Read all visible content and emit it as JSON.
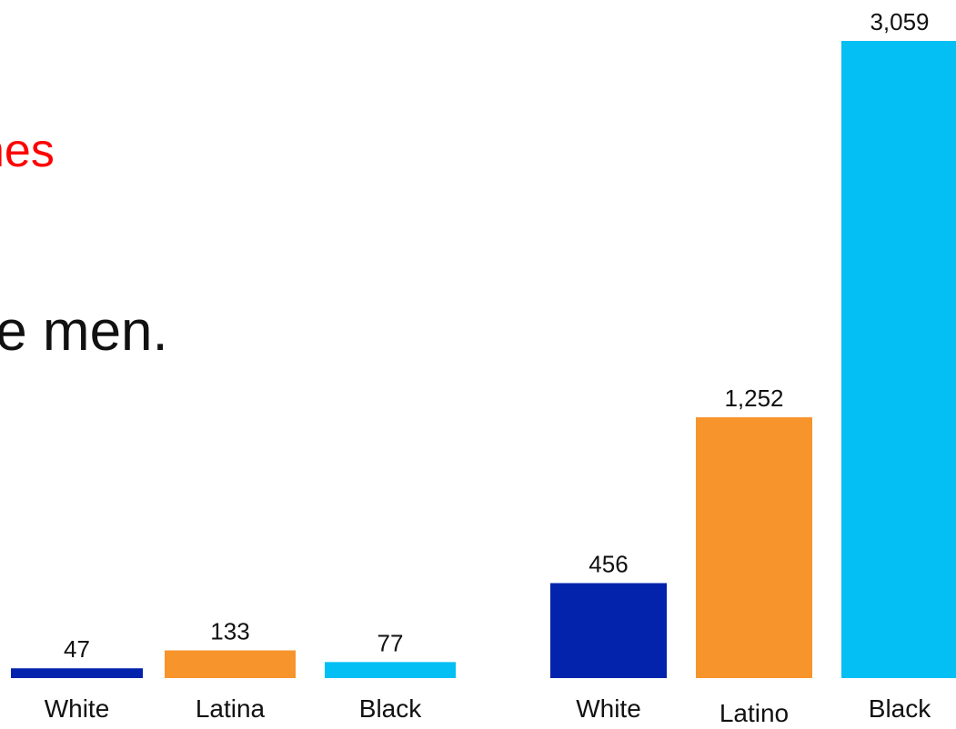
{
  "headline": {
    "line1": "nes",
    "line2": "te men."
  },
  "colors": {
    "headline_accent": "#ff0000",
    "white": "#0323ac",
    "latino": "#f7942c",
    "black": "#03bff3"
  },
  "chart_data": [
    {
      "type": "bar",
      "categories": [
        "White",
        "Latina",
        "Black"
      ],
      "values": [
        47,
        133,
        77
      ],
      "colors": [
        "#0323ac",
        "#f7942c",
        "#03bff3"
      ],
      "value_labels": [
        "47",
        "133",
        "77"
      ],
      "ylim": [
        0,
        3059
      ],
      "grid": false
    },
    {
      "type": "bar",
      "categories": [
        "White",
        "Latino",
        "Black"
      ],
      "values": [
        456,
        1252,
        3059
      ],
      "colors": [
        "#0323ac",
        "#f7942c",
        "#03bff3"
      ],
      "value_labels": [
        "456",
        "1,252",
        "3,059"
      ],
      "ylim": [
        0,
        3059
      ],
      "grid": false
    }
  ]
}
